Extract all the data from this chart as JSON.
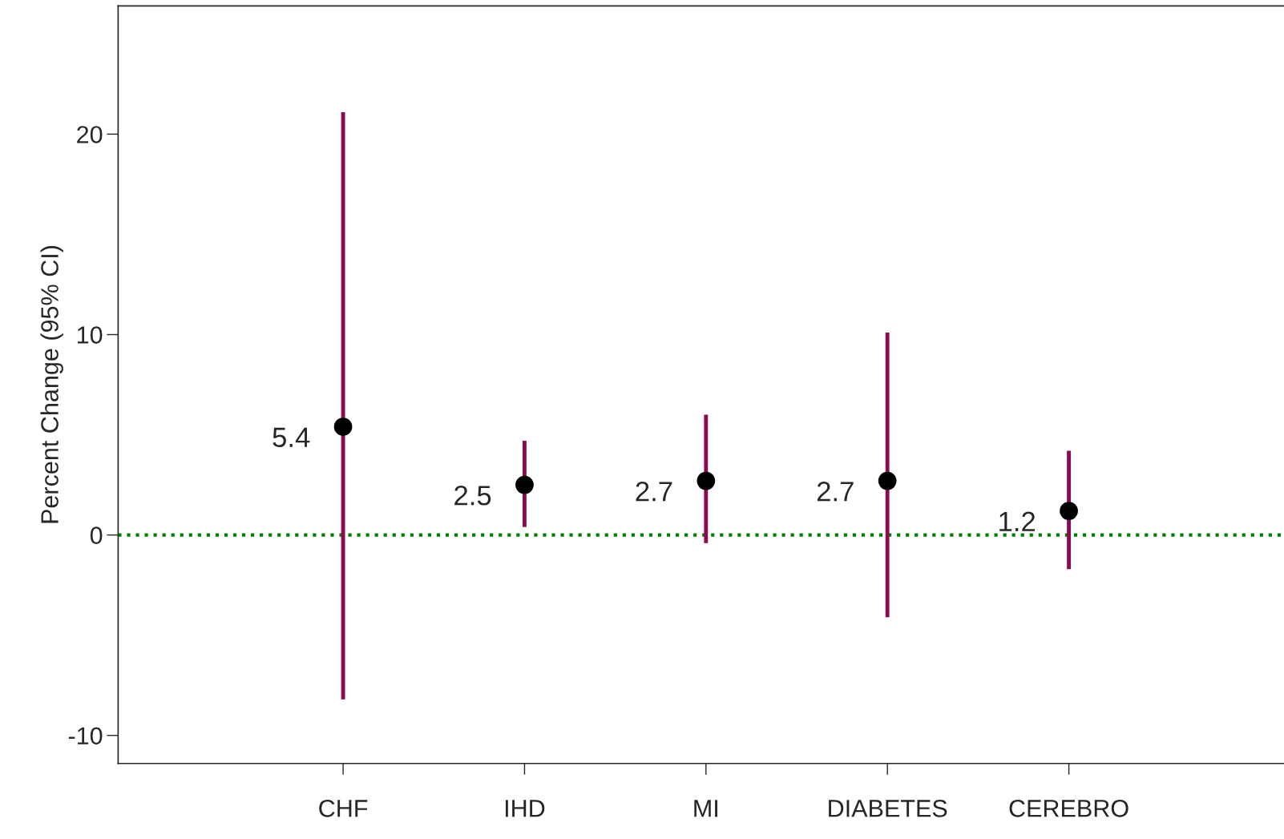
{
  "chart_data": {
    "type": "scatter",
    "ylabel": "Percent Change (95% CI)",
    "categories": [
      "CHF",
      "IHD",
      "MI",
      "DIABETES",
      "CEREBRO"
    ],
    "series": [
      {
        "color": "#000000",
        "values": [
          5.4,
          2.5,
          2.7,
          2.7,
          1.2
        ],
        "errors": [
          [
            -8.2,
            21.1
          ],
          [
            0.4,
            4.7
          ],
          [
            -0.4,
            6.0
          ],
          [
            -4.1,
            10.1
          ],
          [
            -1.7,
            4.2
          ]
        ]
      }
    ],
    "data_labels": true,
    "marker": "circle",
    "ylim": [
      -11.4,
      26.4
    ],
    "yticks": [
      -10,
      0,
      10,
      20
    ],
    "ref_lines": [
      {
        "axis": "y",
        "value": 0,
        "color": "#008000",
        "line_style": "dotted"
      }
    ],
    "grid": false,
    "legend": false
  }
}
